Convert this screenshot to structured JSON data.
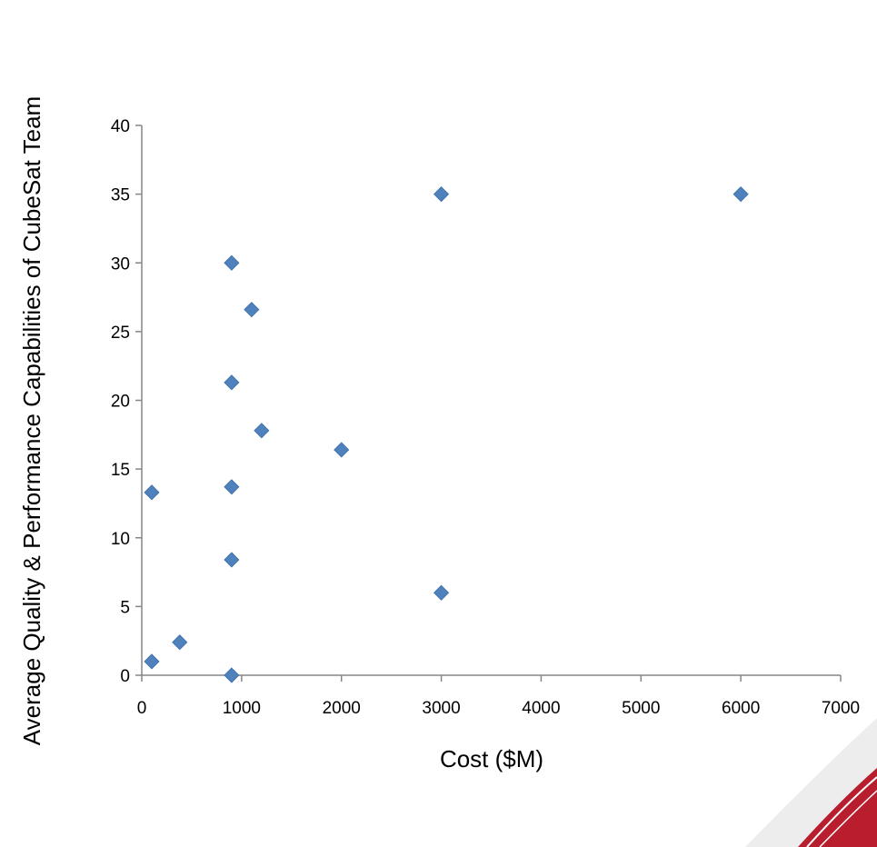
{
  "chart_data": {
    "type": "scatter",
    "title": "",
    "xlabel": "Cost ($M)",
    "ylabel": "Average Quality & Performance Capabilities of CubeSat Team",
    "xlim": [
      0,
      7000
    ],
    "ylim": [
      0,
      40
    ],
    "xticks": [
      0,
      1000,
      2000,
      3000,
      4000,
      5000,
      6000,
      7000
    ],
    "yticks": [
      0,
      5,
      10,
      15,
      20,
      25,
      30,
      35,
      40
    ],
    "grid": false,
    "legend": "none",
    "marker": "diamond",
    "marker_color": "#4f81bd",
    "series": [
      {
        "x": [
          100,
          100,
          380,
          900,
          900,
          900,
          900,
          900,
          1100,
          1200,
          2000,
          3000,
          3000,
          6000
        ],
        "y": [
          1,
          13.3,
          2.4,
          0,
          8.4,
          13.7,
          21.3,
          30,
          26.6,
          17.8,
          16.4,
          6,
          35,
          35
        ]
      }
    ]
  }
}
